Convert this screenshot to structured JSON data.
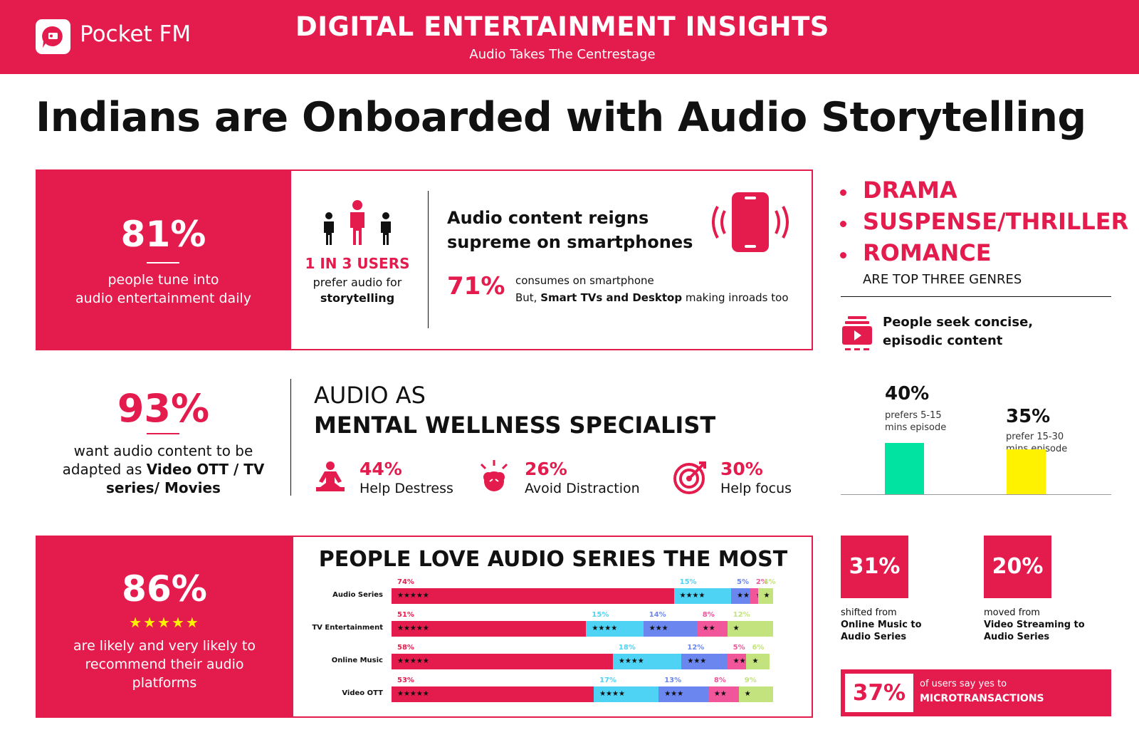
{
  "header": {
    "brand": "Pocket FM",
    "title": "DIGITAL ENTERTAINMENT INSIGHTS",
    "subtitle": "Audio Takes The Centrestage"
  },
  "main_title": "Indians are Onboarded with Audio Storytelling",
  "daily": {
    "pct": "81%",
    "line1": "people tune into",
    "line2": "audio entertainment daily"
  },
  "users": {
    "headline": "1 IN 3 USERS",
    "line1": "prefer audio for",
    "line2": "storytelling"
  },
  "smartphone": {
    "title1": "Audio content reigns",
    "title2": "supreme on smartphones",
    "pct": "71%",
    "line1": "consumes on smartphone",
    "line2_pre": "But, ",
    "line2_bold": "Smart TVs and Desktop",
    "line2_post": " making inroads too"
  },
  "genres": {
    "items": [
      "DRAMA",
      "SUSPENSE/THRILLER",
      "ROMANCE"
    ],
    "caption": "ARE TOP THREE GENRES"
  },
  "episodic": {
    "line1": "People seek concise,",
    "line2": "episodic content"
  },
  "episode_chart": {
    "bars": [
      {
        "pct": "40%",
        "line1": "prefers 5-15",
        "line2": "mins episode",
        "value": 40,
        "color": "#00e3a1"
      },
      {
        "pct": "35%",
        "line1": "prefer 15-30",
        "line2": "mins episode",
        "value": 35,
        "color": "#fff200"
      }
    ]
  },
  "adapt": {
    "pct": "93%",
    "line1": "want audio content to be",
    "line2_pre": "adapted as ",
    "line2_bold": "Video OTT / TV",
    "line3": "series/ Movies"
  },
  "wellness": {
    "title1": "AUDIO AS",
    "title2": "MENTAL WELLNESS SPECIALIST",
    "items": [
      {
        "pct": "44%",
        "label": "Help Destress"
      },
      {
        "pct": "26%",
        "label": "Avoid Distraction"
      },
      {
        "pct": "30%",
        "label": "Help focus"
      }
    ]
  },
  "recommend": {
    "pct": "86%",
    "stars": "★★★★★",
    "line1": "are likely and very likely to",
    "line2": "recommend their audio",
    "line3": "platforms"
  },
  "chart_data": {
    "type": "bar",
    "title": "PEOPLE LOVE AUDIO SERIES THE MOST",
    "orientation": "horizontal-stacked",
    "categories": [
      "Audio Series",
      "TV Entertainment",
      "Online Music",
      "Video OTT"
    ],
    "series": [
      {
        "name": "★★★★★",
        "color": "#e31c4d",
        "values": [
          74,
          51,
          58,
          53
        ]
      },
      {
        "name": "★★★★",
        "color": "#4ed3f5",
        "values": [
          15,
          15,
          18,
          17
        ]
      },
      {
        "name": "★★★",
        "color": "#6b86ee",
        "values": [
          5,
          14,
          12,
          13
        ]
      },
      {
        "name": "★★",
        "color": "#f1559a",
        "values": [
          2,
          8,
          5,
          8
        ]
      },
      {
        "name": "★",
        "color": "#c2e37d",
        "values": [
          4,
          12,
          6,
          9
        ]
      }
    ],
    "pct_labels": [
      [
        "74%",
        "15%",
        "5%",
        "2%",
        "4%"
      ],
      [
        "51%",
        "15%",
        "14%",
        "8%",
        "12%"
      ],
      [
        "58%",
        "18%",
        "12%",
        "5%",
        "6%"
      ],
      [
        "53%",
        "17%",
        "13%",
        "8%",
        "9%"
      ]
    ],
    "label_colors": [
      "#e31c4d",
      "#4ed3f5",
      "#6b86ee",
      "#f1559a",
      "#c2e37d"
    ]
  },
  "shifts": [
    {
      "pct": "31%",
      "line1": "shifted from",
      "line2": "Online Music to",
      "line3": "Audio Series"
    },
    {
      "pct": "20%",
      "line1": "moved from",
      "line2": "Video Streaming to",
      "line3": "Audio Series"
    }
  ],
  "micro": {
    "pct": "37%",
    "line1": "of users say yes to",
    "line2": "MICROTRANSACTIONS"
  },
  "colors": {
    "accent": "#e31c4d"
  }
}
